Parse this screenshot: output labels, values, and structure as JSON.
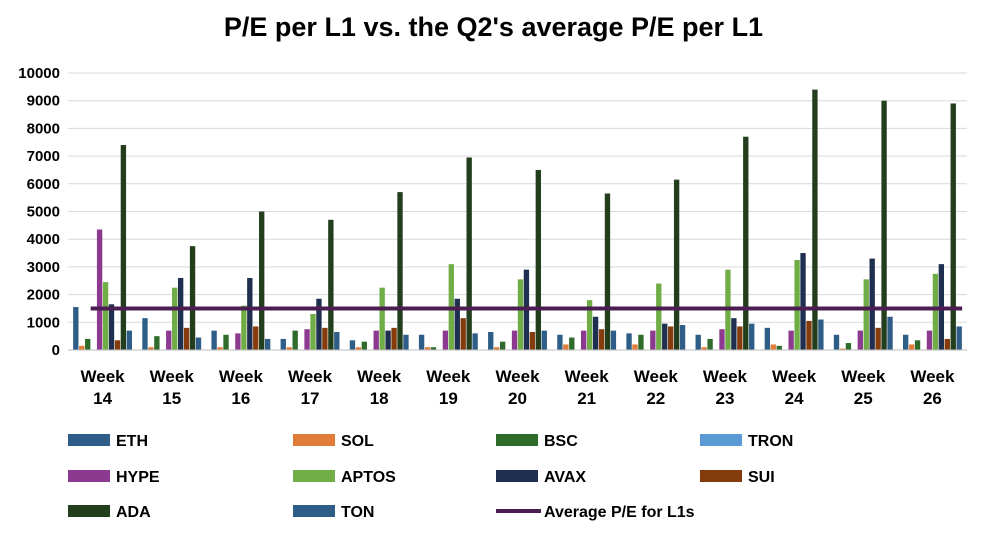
{
  "chart_data": {
    "type": "bar",
    "title": "P/E per L1 vs. the Q2's average P/E per L1",
    "xlabel": "",
    "ylabel": "",
    "ylim": [
      0,
      10000
    ],
    "yticks": [
      0,
      1000,
      2000,
      3000,
      4000,
      5000,
      6000,
      7000,
      8000,
      9000,
      10000
    ],
    "grid": true,
    "legend_position": "bottom",
    "categories": [
      [
        "Week",
        "14"
      ],
      [
        "Week",
        "15"
      ],
      [
        "Week",
        "16"
      ],
      [
        "Week",
        "17"
      ],
      [
        "Week",
        "18"
      ],
      [
        "Week",
        "19"
      ],
      [
        "Week",
        "20"
      ],
      [
        "Week",
        "21"
      ],
      [
        "Week",
        "22"
      ],
      [
        "Week",
        "23"
      ],
      [
        "Week",
        "24"
      ],
      [
        "Week",
        "25"
      ],
      [
        "Week",
        "26"
      ]
    ],
    "series": [
      {
        "name": "ETH",
        "color": "#2e5d87",
        "values": [
          1550,
          1150,
          700,
          400,
          350,
          550,
          650,
          550,
          600,
          550,
          800,
          550,
          550
        ]
      },
      {
        "name": "SOL",
        "color": "#e07b39",
        "values": [
          150,
          100,
          100,
          100,
          100,
          100,
          100,
          200,
          200,
          100,
          200,
          50,
          200
        ]
      },
      {
        "name": "BSC",
        "color": "#2f6b2a",
        "values": [
          400,
          500,
          550,
          700,
          300,
          100,
          300,
          450,
          550,
          400,
          150,
          250,
          350
        ]
      },
      {
        "name": "TRON",
        "color": "#5b9bd5",
        "values": [
          0,
          0,
          0,
          0,
          0,
          0,
          0,
          0,
          0,
          0,
          0,
          0,
          0
        ]
      },
      {
        "name": "HYPE",
        "color": "#8b3a8f",
        "values": [
          4350,
          700,
          600,
          750,
          700,
          700,
          700,
          700,
          700,
          750,
          700,
          700,
          700
        ]
      },
      {
        "name": "APTOS",
        "color": "#70ad47",
        "values": [
          2450,
          2250,
          1600,
          1300,
          2250,
          3100,
          2550,
          1800,
          2400,
          2900,
          3250,
          2550,
          2750
        ]
      },
      {
        "name": "AVAX",
        "color": "#1f2f4f",
        "values": [
          1650,
          2600,
          2600,
          1850,
          700,
          1850,
          2900,
          1200,
          950,
          1150,
          3500,
          3300,
          3100
        ]
      },
      {
        "name": "SUI",
        "color": "#843c0c",
        "values": [
          350,
          800,
          850,
          800,
          800,
          1150,
          650,
          750,
          850,
          850,
          1050,
          800,
          400
        ]
      },
      {
        "name": "ADA",
        "color": "#233e1c",
        "values": [
          7400,
          3750,
          5000,
          4700,
          5700,
          6950,
          6500,
          5650,
          6150,
          7700,
          9400,
          9000,
          8900
        ]
      },
      {
        "name": "TON",
        "color": "#2e5d87",
        "values": [
          700,
          450,
          400,
          650,
          550,
          600,
          700,
          700,
          900,
          950,
          1100,
          1200,
          850
        ]
      }
    ],
    "average_line": {
      "name": "Average P/E for L1s",
      "color": "#4b1d52",
      "value": 1500
    },
    "legend": [
      {
        "name": "ETH",
        "color": "#2e5d87",
        "kind": "box"
      },
      {
        "name": "SOL",
        "color": "#e07b39",
        "kind": "box"
      },
      {
        "name": "BSC",
        "color": "#2f6b2a",
        "kind": "box"
      },
      {
        "name": "TRON",
        "color": "#5b9bd5",
        "kind": "box"
      },
      {
        "name": "HYPE",
        "color": "#8b3a8f",
        "kind": "box"
      },
      {
        "name": "APTOS",
        "color": "#70ad47",
        "kind": "box"
      },
      {
        "name": "AVAX",
        "color": "#1f2f4f",
        "kind": "box"
      },
      {
        "name": "SUI",
        "color": "#843c0c",
        "kind": "box"
      },
      {
        "name": "ADA",
        "color": "#233e1c",
        "kind": "box"
      },
      {
        "name": "TON",
        "color": "#2e5d87",
        "kind": "box"
      },
      {
        "name": "Average P/E for L1s",
        "color": "#4b1d52",
        "kind": "line"
      }
    ]
  }
}
